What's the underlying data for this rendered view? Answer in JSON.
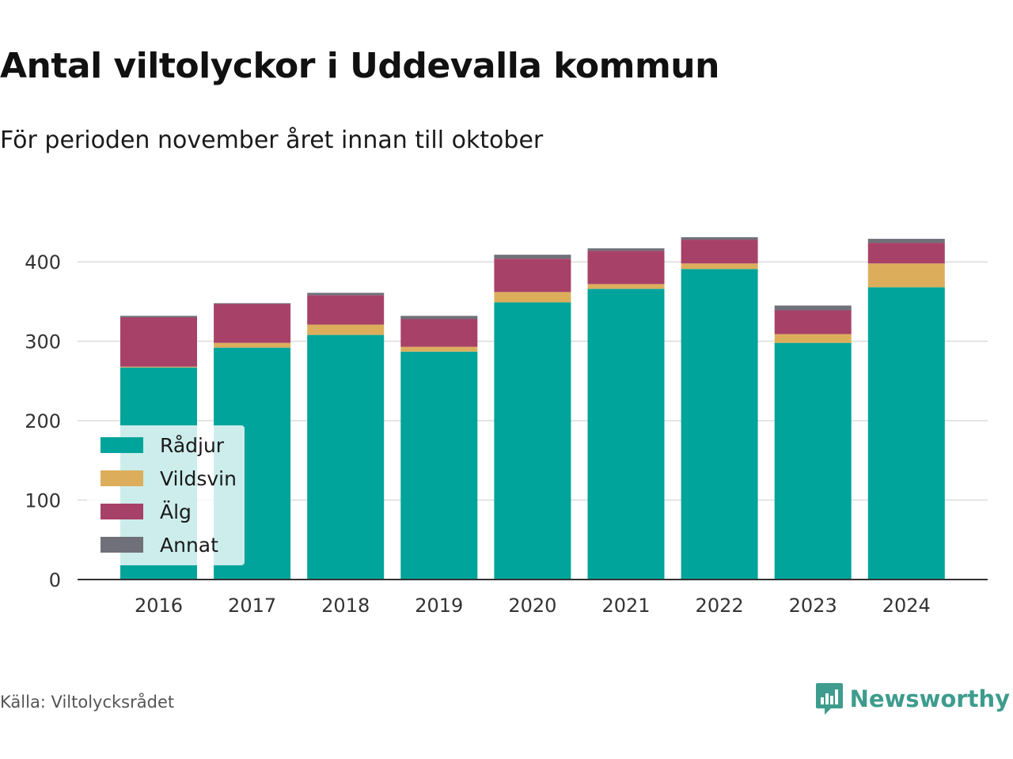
{
  "title": "Antal viltolyckor i Uddevalla kommun",
  "subtitle": "För perioden november året innan till oktober",
  "source": "Källa: Viltolycksrådet",
  "brand": {
    "name": "Newsworthy",
    "icon": "newsworthy-logo-icon",
    "color": "#3d9c8d"
  },
  "chart_data": {
    "type": "bar",
    "stacked": true,
    "categories": [
      "2016",
      "2017",
      "2018",
      "2019",
      "2020",
      "2021",
      "2022",
      "2023",
      "2024"
    ],
    "series": [
      {
        "name": "Rådjur",
        "color": "#00a49a",
        "values": [
          267,
          292,
          308,
          287,
          349,
          366,
          391,
          298,
          368
        ]
      },
      {
        "name": "Vildsvin",
        "color": "#dcae5c",
        "values": [
          1,
          6,
          13,
          6,
          13,
          6,
          7,
          11,
          30
        ]
      },
      {
        "name": "Älg",
        "color": "#a84168",
        "values": [
          62,
          49,
          37,
          35,
          42,
          42,
          30,
          30,
          26
        ]
      },
      {
        "name": "Annat",
        "color": "#6f7079",
        "values": [
          2,
          1,
          3,
          4,
          5,
          3,
          3,
          6,
          5
        ]
      }
    ],
    "xlabel": "",
    "ylabel": "",
    "ylim": [
      0,
      440
    ],
    "yticks": [
      0,
      100,
      200,
      300,
      400
    ],
    "grid": true,
    "legend_position": "bottom-left"
  }
}
